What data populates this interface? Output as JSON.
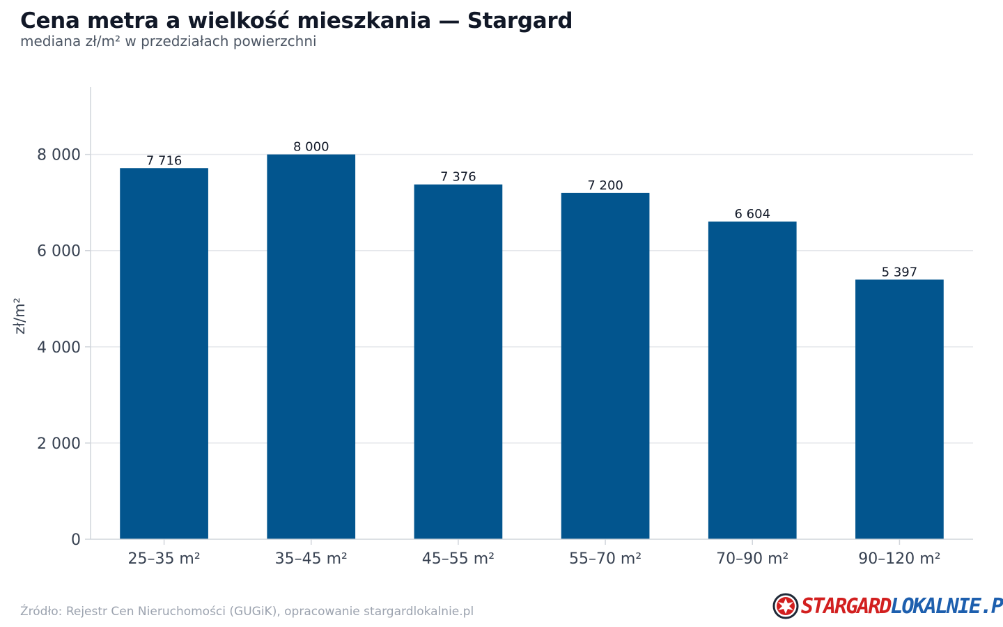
{
  "title": "Cena metra a wielkość mieszkania — Stargard",
  "subtitle": "mediana zł/m² w przedziałach powierzchni",
  "source": "Źródło: Rejestr Cen Nieruchomości (GUGiK), opracowanie stargardlokalnie.pl",
  "logo": {
    "part1": "STARGARD",
    "part2": "LOKALNIE",
    "part3": ".PL",
    "icon": "eagle-emblem-icon"
  },
  "colors": {
    "bar": "#02558e",
    "grid": "#e5e7eb",
    "axis": "#d1d5db",
    "tick_text": "#374151",
    "label_text": "#111827"
  },
  "chart_data": {
    "type": "bar",
    "title": "Cena metra a wielkość mieszkania — Stargard",
    "subtitle": "mediana zł/m² w przedziałach powierzchni",
    "xlabel": "",
    "ylabel": "zł/m²",
    "categories": [
      "25–35 m²",
      "35–45 m²",
      "45–55 m²",
      "55–70 m²",
      "70–90 m²",
      "90–120 m²"
    ],
    "values": [
      7716,
      8000,
      7376,
      7200,
      6604,
      5397
    ],
    "value_labels": [
      "7 716",
      "8 000",
      "7 376",
      "7 200",
      "6 604",
      "5 397"
    ],
    "yticks": [
      0,
      2000,
      4000,
      6000,
      8000
    ],
    "ytick_labels": [
      "0",
      "2 000",
      "4 000",
      "6 000",
      "8 000"
    ],
    "ylim": [
      0,
      9400
    ],
    "grid": "horizontal",
    "legend": "none"
  }
}
